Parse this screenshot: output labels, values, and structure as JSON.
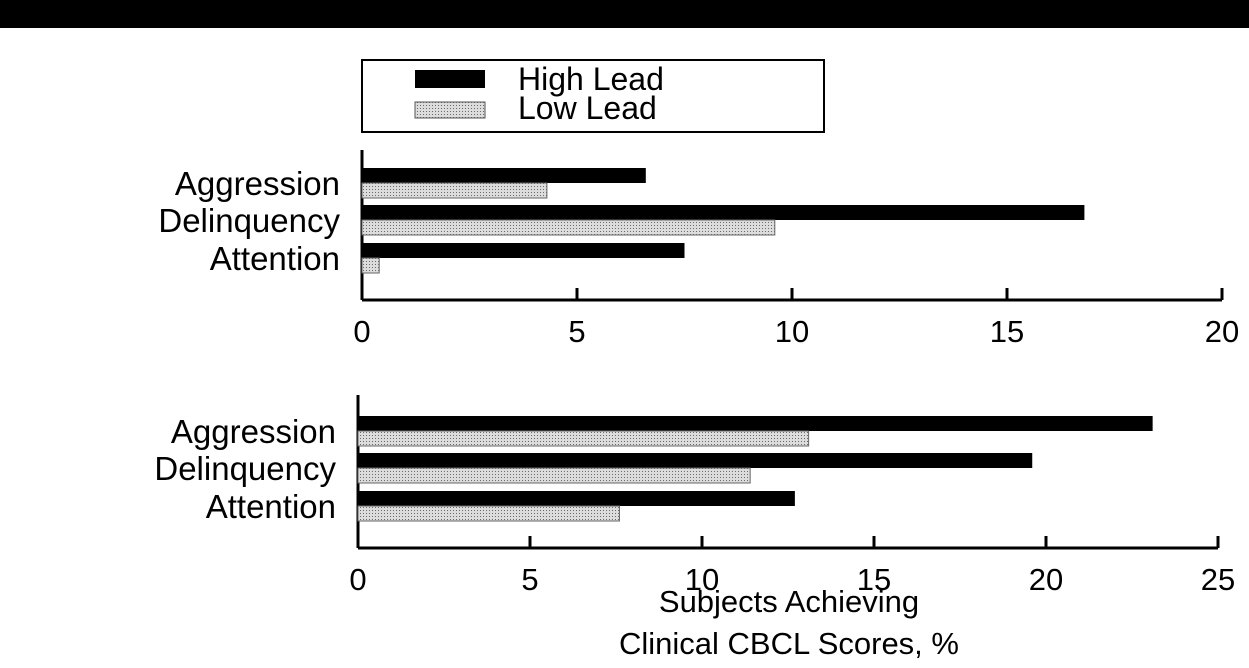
{
  "colors": {
    "high": "#000000",
    "low": "#bdbdbd",
    "axis": "#000000"
  },
  "legend": {
    "items": [
      "High Lead",
      "Low Lead"
    ]
  },
  "chart_data": [
    {
      "type": "bar",
      "orientation": "horizontal",
      "categories": [
        "Aggression",
        "Delinquency",
        "Attention"
      ],
      "series": [
        {
          "name": "High Lead",
          "values": [
            6.6,
            16.8,
            7.5
          ]
        },
        {
          "name": "Low Lead",
          "values": [
            4.3,
            9.6,
            0.4
          ]
        }
      ],
      "xlim": [
        0,
        20
      ],
      "ticks": [
        0,
        5,
        10,
        15,
        20
      ],
      "tick_labels": [
        "0",
        "5",
        "10",
        "15",
        "20"
      ]
    },
    {
      "type": "bar",
      "orientation": "horizontal",
      "categories": [
        "Aggression",
        "Delinquency",
        "Attention"
      ],
      "series": [
        {
          "name": "High Lead",
          "values": [
            23.1,
            19.6,
            12.7
          ]
        },
        {
          "name": "Low Lead",
          "values": [
            13.1,
            11.4,
            7.6
          ]
        }
      ],
      "xlim": [
        0,
        25
      ],
      "ticks": [
        0,
        5,
        10,
        15,
        20,
        25
      ],
      "tick_labels": [
        "0",
        "5",
        "10",
        "15",
        "20",
        "25"
      ],
      "xlabel_lines": [
        "Subjects Achieving",
        "Clinical CBCL Scores, %"
      ]
    }
  ]
}
